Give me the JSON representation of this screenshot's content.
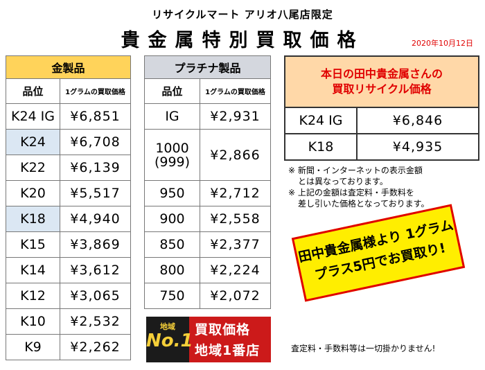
{
  "header": {
    "subtitle": "リサイクルマート アリオ八尾店限定",
    "title": "貴金属特別買取価格",
    "date": "2020年10月12日"
  },
  "gold": {
    "caption": "金製品",
    "col_grade": "品位",
    "col_price": "1グラムの買取価格",
    "rows": [
      {
        "grade": "K24 IG",
        "price": "¥6,851"
      },
      {
        "grade": "K24",
        "price": "¥6,708"
      },
      {
        "grade": "K22",
        "price": "¥6,139"
      },
      {
        "grade": "K20",
        "price": "¥5,517"
      },
      {
        "grade": "K18",
        "price": "¥4,940"
      },
      {
        "grade": "K15",
        "price": "¥3,869"
      },
      {
        "grade": "K14",
        "price": "¥3,612"
      },
      {
        "grade": "K12",
        "price": "¥3,065"
      },
      {
        "grade": "K10",
        "price": "¥2,532"
      },
      {
        "grade": "K9",
        "price": "¥2,262"
      }
    ]
  },
  "platinum": {
    "caption": "プラチナ製品",
    "col_grade": "品位",
    "col_price": "1グラムの買取価格",
    "rows": [
      {
        "grade": "IG",
        "price": "¥2,931"
      },
      {
        "grade": "1000",
        "grade2": "(999)",
        "price": "¥2,866"
      },
      {
        "grade": "950",
        "price": "¥2,712"
      },
      {
        "grade": "900",
        "price": "¥2,558"
      },
      {
        "grade": "850",
        "price": "¥2,377"
      },
      {
        "grade": "800",
        "price": "¥2,224"
      },
      {
        "grade": "750",
        "price": "¥2,072"
      }
    ]
  },
  "tanaka": {
    "caption_line1": "本日の田中貴金属さんの",
    "caption_line2": "買取リサイクル価格",
    "rows": [
      {
        "grade": "K24 IG",
        "price": "¥6,846"
      },
      {
        "grade": "K18",
        "price": "¥4,935"
      }
    ]
  },
  "notes": {
    "line1": "※ 新聞・インターネットの表示金額",
    "line2": "とは異なっております。",
    "line3": "※ 上記の金額は査定料・手数料を",
    "line4": "差し引いた価格となっております。",
    "bottom": "査定料・手数料等は一切掛かりません!"
  },
  "promo": {
    "line1": "田中貴金属様より 1グラム",
    "line2": "プラス5円でお買取り!"
  },
  "badge": {
    "area": "地域",
    "no1": "No.1",
    "line1": "買取価格",
    "line2": "地域1番店"
  },
  "colors": {
    "gold_header": "#ffd35a",
    "plat_header": "#d4d7de",
    "tanaka_header": "#ffd8a8",
    "accent_red": "#e00000",
    "highlight_blue": "#dbe7f3",
    "promo_yellow": "#ffee00"
  }
}
